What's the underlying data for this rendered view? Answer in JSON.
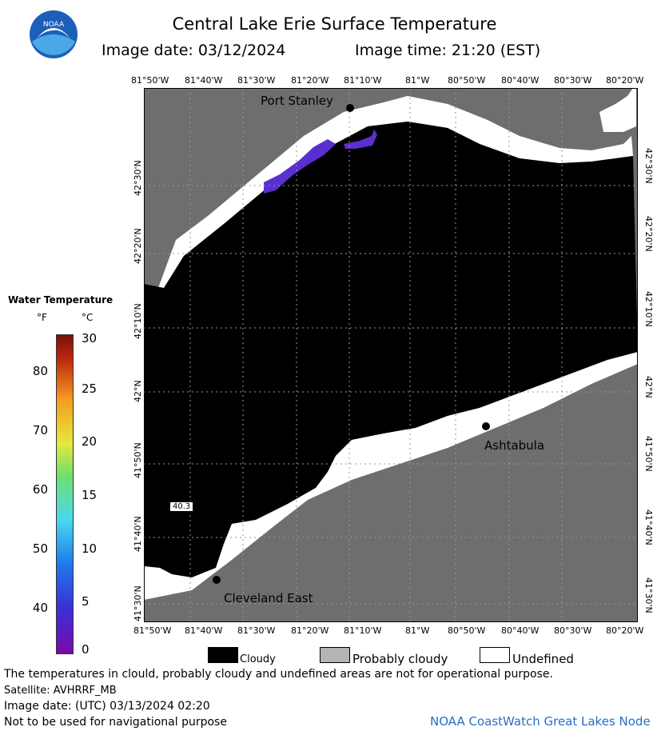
{
  "header": {
    "logo_text": "NOAA",
    "title": "Central Lake Erie Surface Temperature",
    "image_date": "Image date: 03/12/2024",
    "image_time": "Image time: 21:20 (EST)"
  },
  "map": {
    "lon_labels": [
      "81°50'W",
      "81°40'W",
      "81°30'W",
      "81°20'W",
      "81°10'W",
      "81°W",
      "80°50'W",
      "80°40'W",
      "80°30'W",
      "80°20'W"
    ],
    "lat_labels": [
      "42°30'N",
      "42°20'N",
      "42°10'N",
      "42°N",
      "41°50'N",
      "41°40'N",
      "41°30'N"
    ],
    "cities": [
      {
        "name": "Port Stanley"
      },
      {
        "name": "Ashtabula"
      },
      {
        "name": "Cleveland East"
      }
    ],
    "buoy_reading": "40.3"
  },
  "legend": {
    "title": "Water Temperature",
    "unit_f": "°F",
    "unit_c": "°C",
    "f_ticks": [
      "80",
      "70",
      "60",
      "50",
      "40"
    ],
    "c_ticks": [
      "30",
      "25",
      "20",
      "15",
      "10",
      "5",
      "0"
    ],
    "colors": {
      "cloudy": "#000000",
      "probably_cloudy": "#b4b4b4",
      "undefined": "#ffffff",
      "land": "#6e6e6e"
    },
    "keys": {
      "cloudy": "Cloudy",
      "probably_cloudy": "Probably cloudy",
      "undefined": "Undefined"
    }
  },
  "footer": {
    "disclaimer": "The temperatures in clould, probably cloudy and undefined areas are not for operational purpose.",
    "satellite": "Satellite: AVHRRF_MB",
    "utc_date": "Image date: (UTC) 03/13/2024  02:20",
    "navigation": "Not to be used for navigational purpose",
    "node": "NOAA CoastWatch Great Lakes Node"
  }
}
